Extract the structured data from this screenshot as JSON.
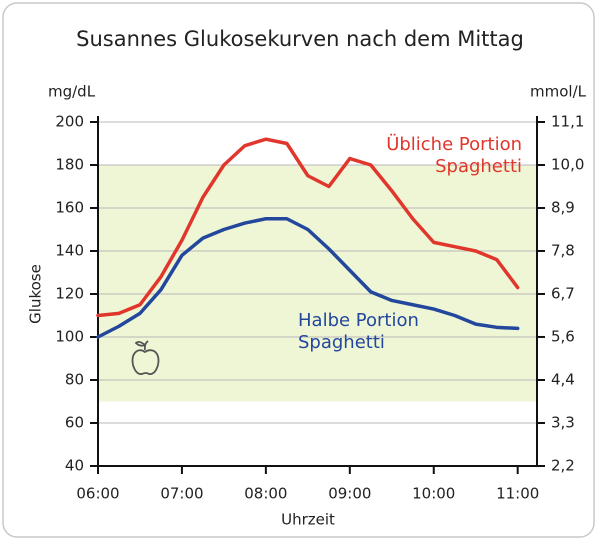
{
  "chart_data": {
    "type": "line",
    "title": "Susannes Glukosekurven nach dem Mittag",
    "y_axis_label": "Glukose",
    "y_unit": "mg/dL",
    "y2_unit": "mmol/L",
    "x_axis_label": "Uhrzeit",
    "x": [
      6,
      6.25,
      6.5,
      6.75,
      7,
      7.25,
      7.5,
      7.75,
      8,
      8.25,
      8.5,
      8.75,
      9,
      9.25,
      9.5,
      9.75,
      10,
      10.25,
      10.5,
      10.75,
      11
    ],
    "series": [
      {
        "name": "Übliche Portion Spaghetti",
        "color": "#e0362c",
        "values": [
          110,
          111,
          115,
          128,
          145,
          165,
          180,
          189,
          192,
          190,
          175,
          170,
          183,
          180,
          168,
          155,
          144,
          142,
          140,
          136,
          123
        ]
      },
      {
        "name": "Halbe Portion Spaghetti",
        "color": "#22479c",
        "values": [
          100,
          105,
          111,
          122,
          138,
          146,
          150,
          153,
          155,
          155,
          150,
          141,
          131,
          121,
          117,
          115,
          113,
          110,
          106,
          104.5,
          104
        ]
      }
    ],
    "shaded_range": [
      70,
      180
    ],
    "shaded_color": "#eff6d6",
    "xlim": [
      6,
      11.23
    ],
    "xticks": [
      {
        "value": 6,
        "label": "06:00"
      },
      {
        "value": 7,
        "label": "07:00"
      },
      {
        "value": 8,
        "label": "08:00"
      },
      {
        "value": 9,
        "label": "09:00"
      },
      {
        "value": 10,
        "label": "10:00"
      },
      {
        "value": 11,
        "label": "11:00"
      }
    ],
    "ylim": [
      40,
      200
    ],
    "yticks": [
      40,
      60,
      80,
      100,
      120,
      140,
      160,
      180,
      200
    ],
    "y2lim": [
      2.222,
      11.111
    ],
    "y2ticks": [
      {
        "value": 2.222,
        "label": "2,2"
      },
      {
        "value": 3.333,
        "label": "3,3"
      },
      {
        "value": 4.444,
        "label": "4,4"
      },
      {
        "value": 5.556,
        "label": "5,6"
      },
      {
        "value": 6.667,
        "label": "6,7"
      },
      {
        "value": 7.778,
        "label": "7,8"
      },
      {
        "value": 8.889,
        "label": "8,9"
      },
      {
        "value": 10,
        "label": "10,0"
      },
      {
        "value": 11.111,
        "label": "11,1"
      }
    ],
    "grid": true
  }
}
